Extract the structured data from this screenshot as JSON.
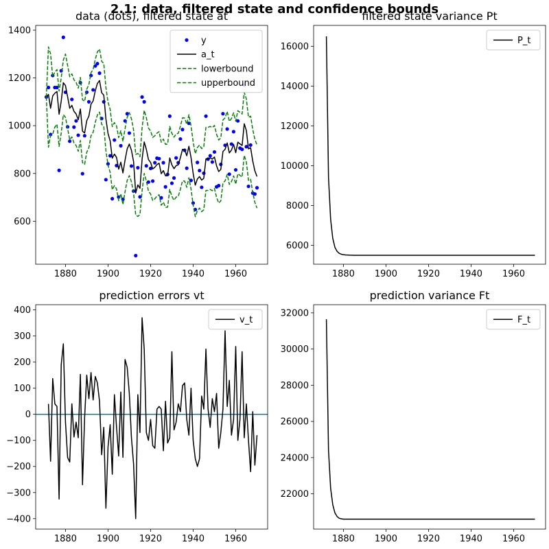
{
  "figure": {
    "title": "2.1: data, filtered state and confidence bounds"
  },
  "chart_data": [
    {
      "type": "line",
      "title": "data (dots), filtered state at",
      "xlim": [
        1866,
        1975
      ],
      "ylim": [
        420,
        1420
      ],
      "xticks": [
        1880,
        1900,
        1920,
        1940,
        1960
      ],
      "yticks": [
        600,
        800,
        1000,
        1200,
        1400
      ],
      "legend_position": "top-right",
      "x": [
        1871,
        1872,
        1873,
        1874,
        1875,
        1876,
        1877,
        1878,
        1879,
        1880,
        1881,
        1882,
        1883,
        1884,
        1885,
        1886,
        1887,
        1888,
        1889,
        1890,
        1891,
        1892,
        1893,
        1894,
        1895,
        1896,
        1897,
        1898,
        1899,
        1900,
        1901,
        1902,
        1903,
        1904,
        1905,
        1906,
        1907,
        1908,
        1909,
        1910,
        1911,
        1912,
        1913,
        1914,
        1915,
        1916,
        1917,
        1918,
        1919,
        1920,
        1921,
        1922,
        1923,
        1924,
        1925,
        1926,
        1927,
        1928,
        1929,
        1930,
        1931,
        1932,
        1933,
        1934,
        1935,
        1936,
        1937,
        1938,
        1939,
        1940,
        1941,
        1942,
        1943,
        1944,
        1945,
        1946,
        1947,
        1948,
        1949,
        1950,
        1951,
        1952,
        1953,
        1954,
        1955,
        1956,
        1957,
        1958,
        1959,
        1960,
        1961,
        1962,
        1963,
        1964,
        1965,
        1966,
        1967,
        1968,
        1969,
        1970
      ],
      "series": [
        {
          "name": "y",
          "style": "dots",
          "color": "#0000ff",
          "values": [
            1120,
            1160,
            963,
            1210,
            1160,
            1160,
            813,
            1230,
            1370,
            1140,
            995,
            935,
            1110,
            994,
            1020,
            960,
            1180,
            799,
            958,
            1140,
            1100,
            1210,
            1150,
            1250,
            1260,
            1220,
            1030,
            1100,
            774,
            840,
            874,
            694,
            940,
            833,
            701,
            916,
            692,
            1020,
            1050,
            969,
            831,
            726,
            456,
            824,
            702,
            1120,
            1100,
            832,
            764,
            821,
            768,
            845,
            864,
            862,
            698,
            845,
            744,
            796,
            1040,
            759,
            781,
            865,
            845,
            944,
            984,
            897,
            822,
            1010,
            771,
            676,
            649,
            846,
            812,
            742,
            801,
            1040,
            860,
            874,
            848,
            890,
            744,
            749,
            838,
            1050,
            918,
            986,
            797,
            923,
            975,
            815,
            1020,
            906,
            901,
            1170,
            912,
            746,
            919,
            718,
            714,
            740
          ]
        },
        {
          "name": "a_t",
          "style": "solid",
          "color": "#000000",
          "values": [
            1120,
            1131,
            1073,
            1125,
            1136,
            1143,
            1048,
            1103,
            1180,
            1168,
            1121,
            1073,
            1085,
            1060,
            1049,
            1025,
            1070,
            977,
            970,
            1021,
            1040,
            1090,
            1104,
            1146,
            1177,
            1189,
            1138,
            1128,
            1028,
            967,
            936,
            864,
            881,
            867,
            818,
            847,
            802,
            856,
            903,
            923,
            897,
            850,
            718,
            752,
            738,
            859,
            932,
            901,
            858,
            846,
            819,
            826,
            837,
            843,
            799,
            812,
            790,
            791,
            865,
            836,
            820,
            833,
            836,
            866,
            901,
            900,
            874,
            914,
            867,
            800,
            751,
            777,
            787,
            772,
            780,
            861,
            861,
            865,
            860,
            869,
            832,
            808,
            817,
            892,
            901,
            928,
            886,
            898,
            922,
            887,
            931,
            924,
            917,
            1008,
            980,
            903,
            908,
            852,
            811,
            787
          ]
        },
        {
          "name": "lowerbound",
          "style": "dashed",
          "color": "#008000",
          "values": [
            1120,
            910,
            960,
            965,
            994,
            1006,
            913,
            969,
            1046,
            1035,
            988,
            941,
            953,
            928,
            917,
            893,
            938,
            845,
            838,
            889,
            908,
            958,
            972,
            1014,
            1045,
            1057,
            1006,
            996,
            896,
            835,
            804,
            732,
            749,
            735,
            686,
            715,
            670,
            724,
            771,
            791,
            765,
            718,
            626,
            620,
            628,
            727,
            800,
            769,
            726,
            714,
            687,
            694,
            705,
            711,
            667,
            680,
            658,
            659,
            733,
            704,
            688,
            701,
            704,
            734,
            769,
            768,
            742,
            782,
            735,
            668,
            619,
            645,
            655,
            640,
            648,
            729,
            729,
            733,
            728,
            737,
            700,
            676,
            685,
            760,
            769,
            796,
            754,
            766,
            790,
            755,
            799,
            792,
            785,
            876,
            848,
            771,
            776,
            720,
            679,
            655
          ]
        },
        {
          "name": "upperbound",
          "style": "dashed",
          "color": "#008000",
          "values": [
            1120,
            1330,
            1300,
            1205,
            1225,
            1235,
            1145,
            1200,
            1275,
            1300,
            1253,
            1205,
            1217,
            1192,
            1181,
            1157,
            1202,
            1109,
            1102,
            1153,
            1172,
            1222,
            1236,
            1278,
            1309,
            1321,
            1270,
            1260,
            1160,
            1099,
            1068,
            996,
            1013,
            999,
            950,
            979,
            934,
            988,
            1035,
            1055,
            1029,
            982,
            880,
            884,
            870,
            991,
            1064,
            1033,
            990,
            978,
            951,
            958,
            969,
            975,
            931,
            944,
            922,
            923,
            997,
            968,
            952,
            965,
            968,
            998,
            1033,
            1032,
            1006,
            1046,
            999,
            932,
            883,
            909,
            919,
            904,
            912,
            993,
            993,
            997,
            992,
            1001,
            964,
            940,
            949,
            1024,
            1033,
            1060,
            1018,
            1030,
            1054,
            1019,
            1063,
            1056,
            1049,
            1140,
            1112,
            1035,
            1040,
            984,
            943,
            919
          ]
        }
      ]
    },
    {
      "type": "line",
      "title": "filtered state variance Pt",
      "xlim": [
        1866,
        1975
      ],
      "ylim": [
        5050,
        17050
      ],
      "xticks": [
        1880,
        1900,
        1920,
        1940,
        1960
      ],
      "yticks": [
        6000,
        8000,
        10000,
        12000,
        14000,
        16000
      ],
      "legend_position": "top-right",
      "x": [
        1872,
        1873,
        1874,
        1875,
        1876,
        1877,
        1878,
        1879,
        1880,
        1881,
        1882,
        1883,
        1884,
        1885,
        1886,
        1888,
        1890,
        1900,
        1910,
        1920,
        1930,
        1940,
        1950,
        1960,
        1970
      ],
      "series": [
        {
          "name": "P_t",
          "style": "solid",
          "color": "#000000",
          "values": [
            16500,
            9400,
            7300,
            6350,
            5900,
            5700,
            5600,
            5550,
            5530,
            5515,
            5510,
            5505,
            5502,
            5500,
            5500,
            5500,
            5500,
            5500,
            5500,
            5500,
            5500,
            5500,
            5500,
            5500,
            5500
          ]
        }
      ]
    },
    {
      "type": "line",
      "title": "prediction errors vt",
      "xlim": [
        1866,
        1975
      ],
      "ylim": [
        -440,
        420
      ],
      "xticks": [
        1880,
        1900,
        1920,
        1940,
        1960
      ],
      "yticks": [
        -400,
        -300,
        -200,
        -100,
        0,
        100,
        200,
        300,
        400
      ],
      "legend_position": "top-right",
      "reference_line": 0,
      "x": [
        1872,
        1873,
        1874,
        1875,
        1876,
        1877,
        1878,
        1879,
        1880,
        1881,
        1882,
        1883,
        1884,
        1885,
        1886,
        1887,
        1888,
        1889,
        1890,
        1891,
        1892,
        1893,
        1894,
        1895,
        1896,
        1897,
        1898,
        1899,
        1900,
        1901,
        1902,
        1903,
        1904,
        1905,
        1906,
        1907,
        1908,
        1909,
        1910,
        1911,
        1912,
        1913,
        1914,
        1915,
        1916,
        1917,
        1918,
        1919,
        1920,
        1921,
        1922,
        1923,
        1924,
        1925,
        1926,
        1927,
        1928,
        1929,
        1930,
        1931,
        1932,
        1933,
        1934,
        1935,
        1936,
        1937,
        1938,
        1939,
        1940,
        1941,
        1942,
        1943,
        1944,
        1945,
        1946,
        1947,
        1948,
        1949,
        1950,
        1951,
        1952,
        1953,
        1954,
        1955,
        1956,
        1957,
        1958,
        1959,
        1960,
        1961,
        1962,
        1963,
        1964,
        1965,
        1966,
        1967,
        1968,
        1969,
        1970
      ],
      "series": [
        {
          "name": "v_t",
          "style": "solid",
          "color": "#000000",
          "values": [
            40,
            -180,
            137,
            40,
            30,
            -325,
            190,
            270,
            -30,
            -165,
            -183,
            40,
            -87,
            -30,
            -90,
            153,
            -270,
            -12,
            150,
            60,
            160,
            55,
            145,
            120,
            50,
            -155,
            -50,
            -360,
            -125,
            -40,
            -230,
            75,
            -50,
            -160,
            85,
            -165,
            210,
            180,
            80,
            -90,
            -190,
            -400,
            75,
            -70,
            370,
            250,
            -70,
            -100,
            -20,
            -120,
            -130,
            20,
            30,
            20,
            -140,
            50,
            -110,
            -90,
            240,
            -60,
            -30,
            40,
            10,
            110,
            120,
            -20,
            -80,
            100,
            -100,
            -170,
            -200,
            -170,
            70,
            20,
            250,
            20,
            -50,
            60,
            10,
            80,
            -130,
            -70,
            20,
            320,
            30,
            130,
            -80,
            -20,
            260,
            -100,
            -20,
            240,
            -90,
            40,
            -100,
            -220,
            10,
            -195,
            -80
          ]
        }
      ]
    },
    {
      "type": "line",
      "title": "prediction variance Ft",
      "xlim": [
        1866,
        1975
      ],
      "ylim": [
        20050,
        32450
      ],
      "xticks": [
        1880,
        1900,
        1920,
        1940,
        1960
      ],
      "yticks": [
        22000,
        24000,
        26000,
        28000,
        30000,
        32000
      ],
      "legend_position": "top-right",
      "x": [
        1872,
        1873,
        1874,
        1875,
        1876,
        1877,
        1878,
        1879,
        1880,
        1881,
        1882,
        1883,
        1884,
        1885,
        1886,
        1888,
        1890,
        1900,
        1910,
        1920,
        1930,
        1940,
        1950,
        1960,
        1970
      ],
      "series": [
        {
          "name": "F_t",
          "style": "solid",
          "color": "#000000",
          "values": [
            31650,
            24400,
            22300,
            21400,
            20950,
            20750,
            20650,
            20620,
            20600,
            20600,
            20600,
            20600,
            20600,
            20600,
            20600,
            20600,
            20600,
            20600,
            20600,
            20600,
            20600,
            20600,
            20600,
            20600,
            20600
          ]
        }
      ]
    }
  ]
}
